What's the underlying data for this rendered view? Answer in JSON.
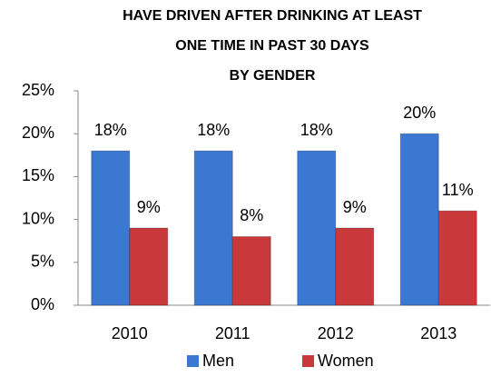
{
  "chart_data": {
    "type": "bar",
    "title": [
      "HAVE DRIVEN AFTER DRINKING AT LEAST",
      "ONE TIME IN PAST 30 DAYS",
      "BY GENDER"
    ],
    "categories": [
      "2010",
      "2011",
      "2012",
      "2013"
    ],
    "series": [
      {
        "name": "Men",
        "color": "#3b78d2",
        "values": [
          18,
          18,
          18,
          20
        ],
        "value_labels": [
          "18%",
          "18%",
          "18%",
          "20%"
        ]
      },
      {
        "name": "Women",
        "color": "#c9383a",
        "values": [
          9,
          8,
          9,
          11
        ],
        "value_labels": [
          "9%",
          "8%",
          "9%",
          "11%"
        ]
      }
    ],
    "ylim": [
      0,
      25
    ],
    "yticks": [
      {
        "value": 0,
        "label": "0%"
      },
      {
        "value": 5,
        "label": "5%"
      },
      {
        "value": 10,
        "label": "10%"
      },
      {
        "value": 15,
        "label": "15%"
      },
      {
        "value": 20,
        "label": "20%"
      },
      {
        "value": 25,
        "label": "25%"
      }
    ],
    "legend": "bottom",
    "grid": false
  }
}
